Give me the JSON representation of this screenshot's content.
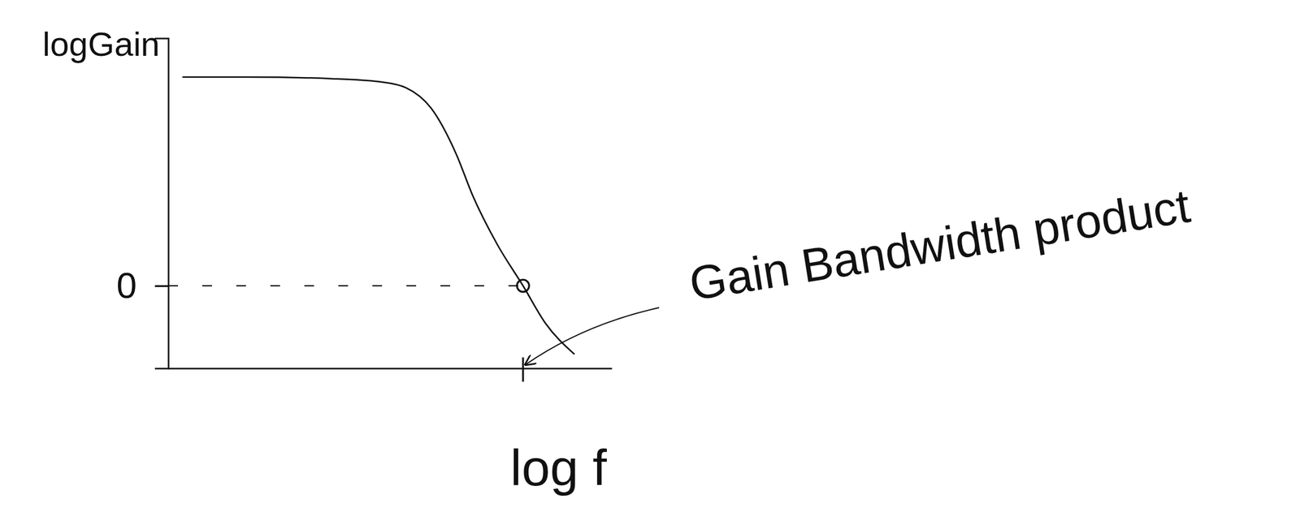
{
  "chart_data": {
    "type": "line",
    "x_label": "log f",
    "y_label": "logGain",
    "x": [
      0.32,
      1.81,
      3.68,
      4.8,
      5.36,
      5.93,
      6.49,
      6.86,
      7.42,
      8.0,
      8.5,
      9.16
    ],
    "values": [
      5.06,
      5.06,
      5.02,
      4.94,
      4.8,
      4.3,
      3.2,
      2.2,
      1.0,
      0,
      -0.9,
      -1.66
    ],
    "xlim": [
      0,
      10
    ],
    "ylim": [
      -2,
      6
    ],
    "xticks": [],
    "yticks": [
      0
    ],
    "tick_labels": "y",
    "color": "#111111",
    "annotations": [
      {
        "text": "Gain Bandwidth product",
        "x": 8.0,
        "y": 0
      }
    ]
  }
}
